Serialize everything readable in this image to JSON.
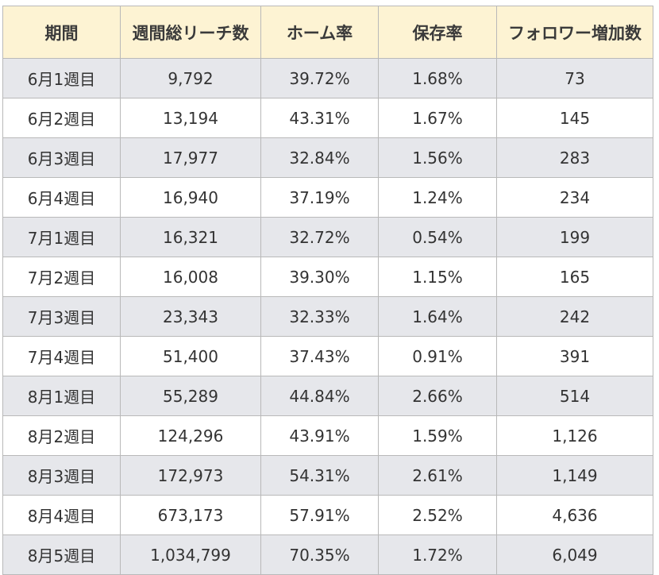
{
  "table": {
    "headers": [
      "期間",
      "週間総リーチ数",
      "ホーム率",
      "保存率",
      "フォロワー増加数"
    ],
    "rows": [
      [
        "6月1週目",
        "9,792",
        "39.72%",
        "1.68%",
        "73"
      ],
      [
        "6月2週目",
        "13,194",
        "43.31%",
        "1.67%",
        "145"
      ],
      [
        "6月3週目",
        "17,977",
        "32.84%",
        "1.56%",
        "283"
      ],
      [
        "6月4週目",
        "16,940",
        "37.19%",
        "1.24%",
        "234"
      ],
      [
        "7月1週目",
        "16,321",
        "32.72%",
        "0.54%",
        "199"
      ],
      [
        "7月2週目",
        "16,008",
        "39.30%",
        "1.15%",
        "165"
      ],
      [
        "7月3週目",
        "23,343",
        "32.33%",
        "1.64%",
        "242"
      ],
      [
        "7月4週目",
        "51,400",
        "37.43%",
        "0.91%",
        "391"
      ],
      [
        "8月1週目",
        "55,289",
        "44.84%",
        "2.66%",
        "514"
      ],
      [
        "8月2週目",
        "124,296",
        "43.91%",
        "1.59%",
        "1,126"
      ],
      [
        "8月3週目",
        "172,973",
        "54.31%",
        "2.61%",
        "1,149"
      ],
      [
        "8月4週目",
        "673,173",
        "57.91%",
        "2.52%",
        "4,636"
      ],
      [
        "8月5週目",
        "1,034,799",
        "70.35%",
        "1.72%",
        "6,049"
      ]
    ]
  },
  "colors": {
    "header_bg": "#fdf3d3",
    "row_odd_bg": "#e6e7eb",
    "row_even_bg": "#ffffff",
    "border": "#b9b9b9"
  }
}
